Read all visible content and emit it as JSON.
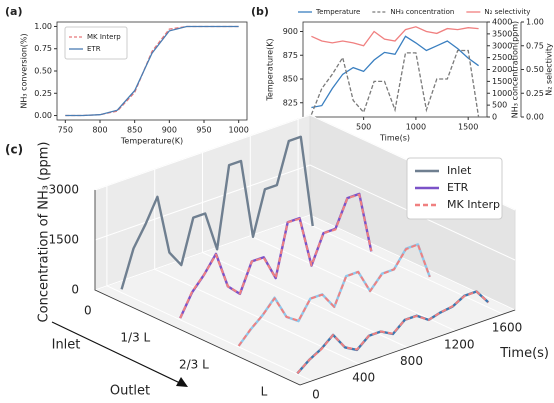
{
  "chart_data": [
    {
      "type": "line",
      "panel_label": "(a)",
      "x": [
        750,
        775,
        800,
        825,
        850,
        875,
        900,
        925,
        950,
        975,
        1000
      ],
      "xlabel": "Temperature(K)",
      "ylabel": "NH₃ conversion(%)",
      "xlim": [
        738,
        1012
      ],
      "ylim": [
        -0.05,
        1.05
      ],
      "xticks": [
        750,
        800,
        850,
        900,
        950,
        1000
      ],
      "yticks": [
        {
          "value": 0,
          "label": "0.00"
        },
        {
          "value": 0.25,
          "label": "0.25"
        },
        {
          "value": 0.5,
          "label": "0.50"
        },
        {
          "value": 0.75,
          "label": "0.75"
        },
        {
          "value": 1,
          "label": "1.00"
        }
      ],
      "legend": "upper left",
      "series": [
        {
          "name": "MK Interp",
          "color": "#e8787a",
          "linestyle": "dashed",
          "values": [
            0,
            0,
            0.01,
            0.05,
            0.26,
            0.72,
            0.97,
            1,
            1,
            1,
            1
          ]
        },
        {
          "name": "ETR",
          "color": "#4a7db3",
          "values": [
            0,
            0,
            0.01,
            0.06,
            0.28,
            0.7,
            0.95,
            1,
            1,
            1,
            1
          ]
        }
      ]
    },
    {
      "type": "line",
      "panel_label": "(b)",
      "x": [
        0,
        100,
        200,
        300,
        400,
        500,
        600,
        700,
        800,
        900,
        1000,
        1100,
        1200,
        1300,
        1400,
        1500,
        1600
      ],
      "xlabel": "Time(s)",
      "xlim": [
        -80,
        1680
      ],
      "xticks": [
        0,
        500,
        1000,
        1500
      ],
      "ylabel": "Temperature(K)",
      "ylim": [
        810,
        910
      ],
      "yticks": [
        825,
        850,
        875,
        900
      ],
      "y2label": "NH₃ concentration(ppm)",
      "y2lim": [
        0,
        4000
      ],
      "y2ticks": [
        0,
        500,
        1000,
        1500,
        2000,
        2500,
        3000,
        3500,
        4000
      ],
      "y3label": "N₂ selectivity",
      "y3lim": [
        0,
        1
      ],
      "y3ticks": [
        {
          "value": 0,
          "label": "0.00"
        },
        {
          "value": 0.25,
          "label": "0.25"
        },
        {
          "value": 0.5,
          "label": "0.50"
        },
        {
          "value": 0.75,
          "label": "0.75"
        },
        {
          "value": 1,
          "label": "1.00"
        }
      ],
      "legend": "above",
      "series": [
        {
          "name": "Temperature",
          "color": "#3a7fc0",
          "values": [
            820,
            822,
            840,
            855,
            862,
            858,
            870,
            878,
            876,
            895,
            888,
            880,
            885,
            890,
            882,
            872,
            864
          ]
        },
        {
          "name": "NH₃ concentration",
          "color": "#7a7a7a",
          "linestyle": "dashed",
          "axis": "y2",
          "values": [
            100,
            1200,
            1800,
            2500,
            700,
            200,
            1500,
            1500,
            300,
            2700,
            2700,
            300,
            1600,
            1600,
            2800,
            2800,
            0
          ]
        },
        {
          "name": "N₂ selectivity",
          "color": "#f08080",
          "axis": "y3",
          "values": [
            0.85,
            0.8,
            0.78,
            0.8,
            0.78,
            0.75,
            0.9,
            0.82,
            0.8,
            0.92,
            0.95,
            0.9,
            0.88,
            0.93,
            0.92,
            0.94,
            0.93
          ]
        }
      ]
    },
    {
      "type": "waterfall3d",
      "panel_label": "(c)",
      "x": [
        0,
        100,
        200,
        300,
        400,
        500,
        600,
        700,
        800,
        900,
        1000,
        1100,
        1200,
        1300,
        1400,
        1500,
        1600
      ],
      "xlabel": "Time(s)",
      "xlim": [
        -100,
        1700
      ],
      "xticks": [
        0,
        400,
        800,
        1200,
        1600
      ],
      "zlabel": "Concentration of NH₃ (ppm)",
      "zlim": [
        0,
        3000
      ],
      "zticks": [
        0,
        1500,
        3000
      ],
      "slices": [
        "0",
        "1/3 L",
        "2/3 L",
        "L"
      ],
      "annotations": [
        "Inlet",
        "Outlet"
      ],
      "series": [
        {
          "name": "Inlet",
          "color": "#6f7f90",
          "slice_colors": [
            "#6f7f90",
            null,
            null,
            null
          ],
          "values": [
            [
              100,
              1200,
              1800,
              2500,
              700,
              200,
              1500,
              1500,
              300,
              2700,
              2700,
              300,
              1600,
              1600,
              2800,
              2800,
              0
            ],
            null,
            null,
            null
          ]
        },
        {
          "name": "ETR",
          "color": "#7b52c8",
          "slice_colors": [
            null,
            "#7b52c8",
            "#8ec8ec",
            "#3c78b0"
          ],
          "values": [
            null,
            [
              50,
              700,
              1100,
              1600,
              500,
              150,
              1000,
              1000,
              250,
              1800,
              1800,
              250,
              1100,
              1100,
              1900,
              1900,
              50
            ],
            [
              30,
              400,
              700,
              1100,
              400,
              150,
              700,
              700,
              200,
              1000,
              1000,
              300,
              700,
              700,
              1200,
              1200,
              100
            ],
            [
              20,
              300,
              500,
              800,
              300,
              100,
              400,
              400,
              200,
              500,
              500,
              250,
              350,
              400,
              600,
              600,
              150
            ]
          ]
        },
        {
          "name": "MK Interp",
          "color": "#f08080",
          "linestyle": "dashed",
          "slice_colors": [
            null,
            "#f08080",
            "#f08080",
            "#f08080"
          ],
          "values": [
            null,
            [
              50,
              720,
              1100,
              1580,
              500,
              160,
              1000,
              980,
              250,
              1800,
              1780,
              260,
              1100,
              1080,
              1900,
              1880,
              60
            ],
            [
              30,
              410,
              700,
              1080,
              400,
              160,
              700,
              690,
              200,
              990,
              1000,
              300,
              690,
              700,
              1180,
              1200,
              100
            ],
            [
              20,
              300,
              490,
              800,
              300,
              110,
              400,
              400,
              210,
              500,
              490,
              250,
              350,
              410,
              590,
              600,
              150
            ]
          ]
        }
      ]
    }
  ]
}
